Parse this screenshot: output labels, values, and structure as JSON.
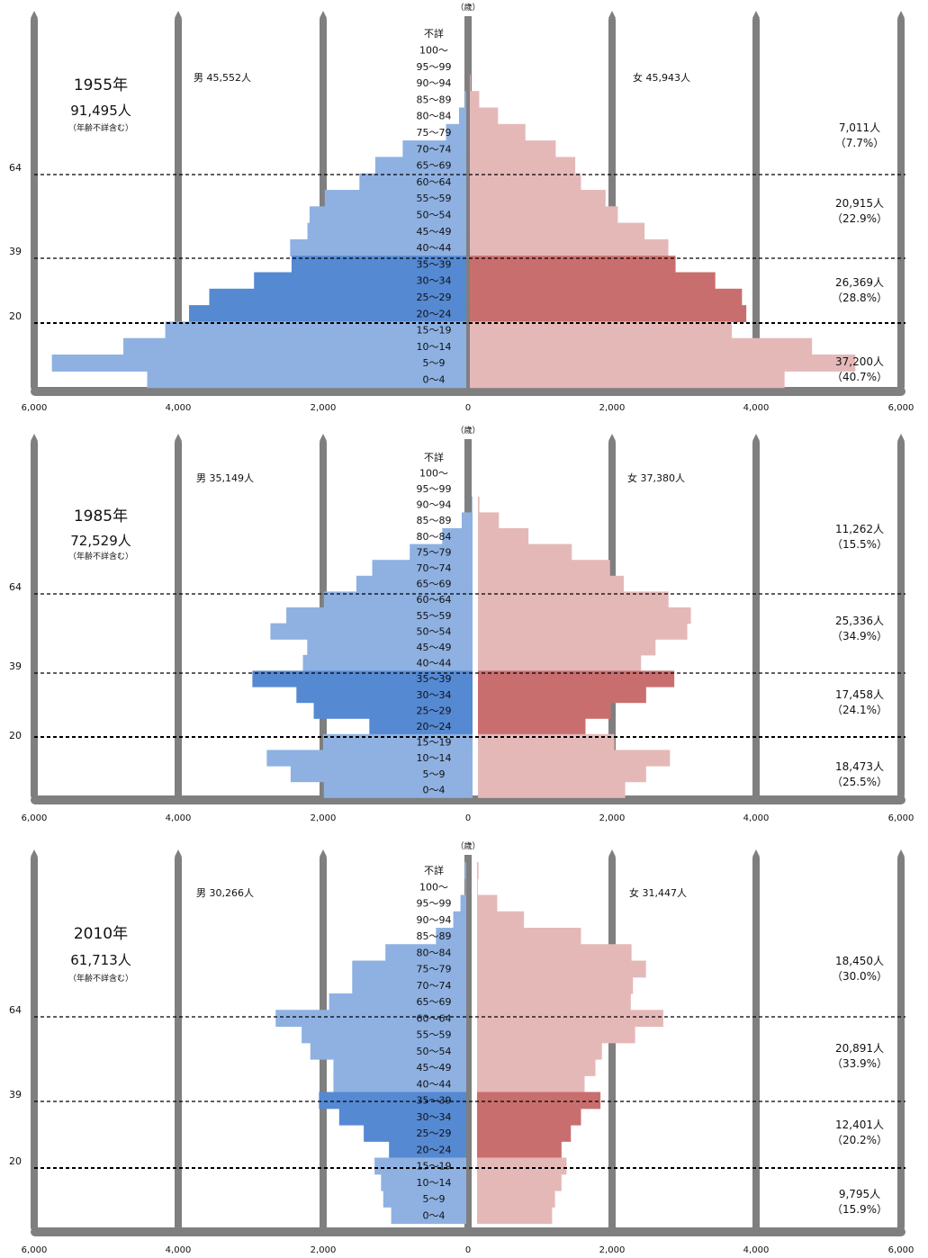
{
  "colors": {
    "male_light": "#8eb1e2",
    "male_dark": "#5589d2",
    "female_light": "#e5b8b8",
    "female_dark": "#c96e6e",
    "pillar": "#7f7f7f",
    "dashed_line": "#000000"
  },
  "chart_data": [
    {
      "type": "bar",
      "orientation": "horizontal-population-pyramid",
      "year_label": "1955年",
      "total_label": "91,495人",
      "total_note": "（年齢不詳含む）",
      "age_unit": "（歳）",
      "male_label": "男 45,552人",
      "female_label": "女 45,943人",
      "x_ticks_left": [
        "6,000",
        "4,000",
        "2,000",
        "0"
      ],
      "x_ticks_right": [
        "2,000",
        "4,000",
        "6,000"
      ],
      "xlim": [
        0,
        6000
      ],
      "categories": [
        "不詳",
        "100〜",
        "95〜99",
        "90〜94",
        "85〜89",
        "80〜84",
        "75〜79",
        "70〜74",
        "65〜69",
        "60〜64",
        "55〜59",
        "50〜54",
        "45〜49",
        "40〜44",
        "35〜39",
        "30〜34",
        "25〜29",
        "20〜24",
        "15〜19",
        "10〜14",
        "5〜9",
        "0〜4"
      ],
      "series": [
        {
          "name": "男",
          "values": [
            0,
            0,
            0,
            0,
            20,
            100,
            280,
            880,
            1260,
            1480,
            1960,
            2170,
            2200,
            2440,
            2420,
            2940,
            3560,
            3840,
            4170,
            4750,
            5740,
            4420
          ]
        },
        {
          "name": "女",
          "values": [
            0,
            0,
            0,
            10,
            130,
            390,
            770,
            1190,
            1460,
            1540,
            1880,
            2050,
            2420,
            2750,
            2850,
            3400,
            3770,
            3830,
            3630,
            4740,
            5340,
            4360
          ]
        }
      ],
      "highlight_categories": [
        "35〜39",
        "30〜34",
        "25〜29",
        "20〜24"
      ],
      "dashed_age_lines": [
        "64",
        "39",
        "20"
      ],
      "groups": [
        {
          "count": "7,011人",
          "share": "（7.7%）"
        },
        {
          "count": "20,915人",
          "share": "（22.9%）"
        },
        {
          "count": "26,369人",
          "share": "（28.8%）"
        },
        {
          "count": "37,200人",
          "share": "（40.7%）"
        }
      ]
    },
    {
      "type": "bar",
      "orientation": "horizontal-population-pyramid",
      "year_label": "1985年",
      "total_label": "72,529人",
      "total_note": "（年齢不詳含む）",
      "age_unit": "（歳）",
      "male_label": "男 35,149人",
      "female_label": "女 37,380人",
      "x_ticks_left": [
        "6,000",
        "4,000",
        "2,000",
        "0"
      ],
      "x_ticks_right": [
        "2,000",
        "4,000",
        "6,000"
      ],
      "xlim": [
        0,
        6000
      ],
      "categories": [
        "不詳",
        "100〜",
        "95〜99",
        "90〜94",
        "85〜89",
        "80〜84",
        "75〜79",
        "70〜74",
        "65〜69",
        "60〜64",
        "55〜59",
        "50〜54",
        "45〜49",
        "40〜44",
        "35〜39",
        "30〜34",
        "25〜29",
        "20〜24",
        "15〜19",
        "10〜14",
        "5〜9",
        "0〜4"
      ],
      "series": [
        {
          "name": "男",
          "values": [
            0,
            0,
            0,
            10,
            150,
            420,
            870,
            1390,
            1610,
            2060,
            2580,
            2800,
            2290,
            2350,
            3050,
            2440,
            2200,
            1430,
            2070,
            2850,
            2520,
            2060
          ]
        },
        {
          "name": "女",
          "values": [
            0,
            0,
            0,
            20,
            290,
            700,
            1300,
            1830,
            2020,
            2640,
            2950,
            2900,
            2460,
            2260,
            2720,
            2330,
            1840,
            1490,
            1890,
            2660,
            2330,
            2040
          ]
        }
      ],
      "highlight_categories": [
        "35〜39",
        "30〜34",
        "25〜29",
        "20〜24"
      ],
      "dashed_age_lines": [
        "64",
        "39",
        "20"
      ],
      "groups": [
        {
          "count": "11,262人",
          "share": "（15.5%）"
        },
        {
          "count": "25,336人",
          "share": "（34.9%）"
        },
        {
          "count": "17,458人",
          "share": "（24.1%）"
        },
        {
          "count": "18,473人",
          "share": "（25.5%）"
        }
      ]
    },
    {
      "type": "bar",
      "orientation": "horizontal-population-pyramid",
      "year_label": "2010年",
      "total_label": "61,713人",
      "total_note": "（年齢不詳含む）",
      "age_unit": "（歳）",
      "male_label": "男 30,266人",
      "female_label": "女 31,447人",
      "x_ticks_left": [
        "6,000",
        "4,000",
        "2,000",
        "0"
      ],
      "x_ticks_right": [
        "2,000",
        "4,000",
        "6,000"
      ],
      "xlim": [
        0,
        6000
      ],
      "categories": [
        "不詳",
        "100〜",
        "95〜99",
        "90〜94",
        "85〜89",
        "80〜84",
        "75〜79",
        "70〜74",
        "65〜69",
        "60〜64",
        "55〜59",
        "50〜54",
        "45〜49",
        "40〜44",
        "35〜39",
        "30〜34",
        "25〜29",
        "20〜24",
        "15〜19",
        "10〜14",
        "5〜9",
        "0〜4"
      ],
      "series": [
        {
          "name": "男",
          "values": [
            20,
            10,
            80,
            180,
            420,
            1120,
            1580,
            1580,
            1900,
            2640,
            2280,
            2160,
            1840,
            1840,
            2040,
            1760,
            1420,
            1070,
            1270,
            1180,
            1150,
            1040
          ]
        },
        {
          "name": "女",
          "values": [
            20,
            10,
            280,
            650,
            1440,
            2140,
            2340,
            2160,
            2130,
            2580,
            2190,
            1730,
            1640,
            1490,
            1710,
            1440,
            1300,
            1170,
            1240,
            1170,
            1080,
            1040
          ]
        }
      ],
      "highlight_categories": [
        "35〜39",
        "30〜34",
        "25〜29",
        "20〜24"
      ],
      "dashed_age_lines": [
        "64",
        "39",
        "20"
      ],
      "groups": [
        {
          "count": "18,450人",
          "share": "（30.0%）"
        },
        {
          "count": "20,891人",
          "share": "（33.9%）"
        },
        {
          "count": "12,401人",
          "share": "（20.2%）"
        },
        {
          "count": "9,795人",
          "share": "（15.9%）"
        }
      ]
    }
  ]
}
